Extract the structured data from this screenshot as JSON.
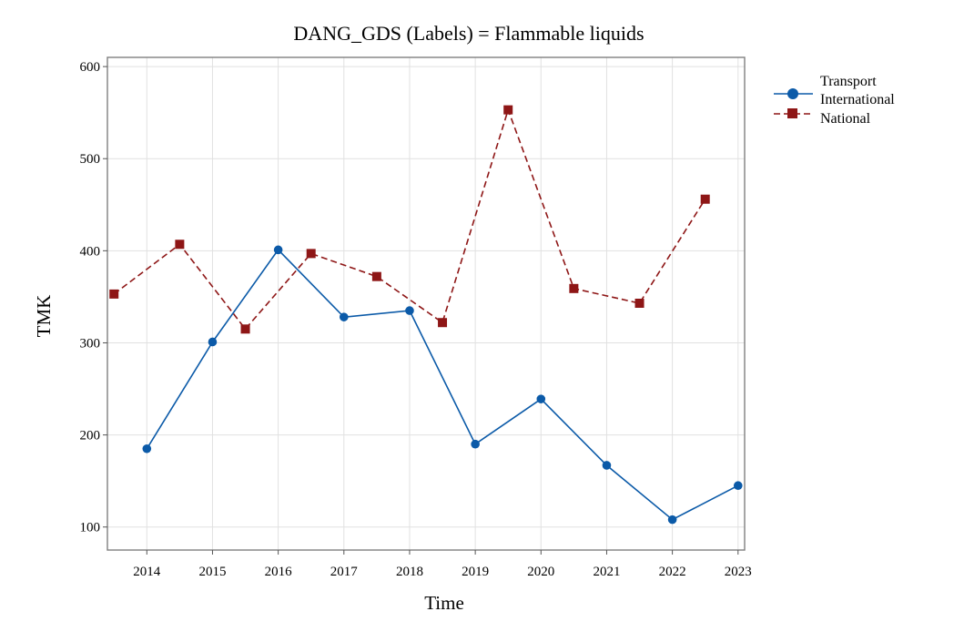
{
  "chart_data": {
    "type": "line",
    "title": "DANG_GDS (Labels) = Flammable liquids",
    "xlabel": "Time",
    "ylabel": "TMK",
    "xlim": [
      2013.4,
      2023.1
    ],
    "ylim": [
      75,
      610
    ],
    "x_ticks": [
      2014,
      2015,
      2016,
      2017,
      2018,
      2019,
      2020,
      2021,
      2022,
      2023
    ],
    "y_ticks": [
      100,
      200,
      300,
      400,
      500,
      600
    ],
    "grid": true,
    "legend": {
      "placement": "right",
      "title": "Transport",
      "entries": [
        "International",
        "National"
      ]
    },
    "series": [
      {
        "name": "International",
        "color": "#0b5aa8",
        "marker": "circle",
        "line_style": "solid",
        "x": [
          2014,
          2015,
          2016,
          2017,
          2018,
          2019,
          2020,
          2021,
          2022,
          2023
        ],
        "y": [
          185,
          301,
          401,
          328,
          335,
          190,
          239,
          167,
          108,
          145
        ]
      },
      {
        "name": "National",
        "color": "#8e1616",
        "marker": "square",
        "line_style": "dashed",
        "x": [
          2013.5,
          2014.5,
          2015.5,
          2016.5,
          2017.5,
          2018.5,
          2019.5,
          2020.5,
          2021.5,
          2022.5
        ],
        "y": [
          353,
          407,
          315,
          397,
          372,
          322,
          553,
          359,
          343,
          456
        ]
      }
    ]
  }
}
